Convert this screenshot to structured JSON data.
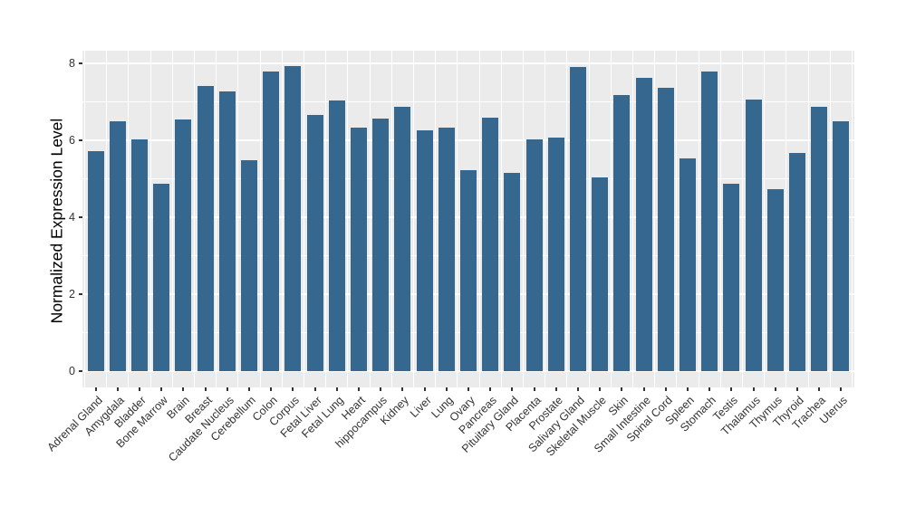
{
  "chart_data": {
    "type": "bar",
    "title": "",
    "xlabel": "",
    "ylabel": "Normalized Expression Level",
    "legend_position": "none",
    "grid": "on",
    "ylim": [
      -0.42,
      8.33
    ],
    "yticks": [
      0,
      2,
      4,
      6,
      8
    ],
    "minor_yticks": [
      1,
      3,
      5,
      7
    ],
    "categories": [
      "Adrenal Gland",
      "Amygdala",
      "Bladder",
      "Bone Marrow",
      "Brain",
      "Breast",
      "Caudate Nucleus",
      "Cerebellum",
      "Colon",
      "Corpus",
      "Fetal Liver",
      "Fetal Lung",
      "Heart",
      "hippocampus",
      "Kidney",
      "Liver",
      "Lung",
      "Ovary",
      "Pancreas",
      "Pituitary Gland",
      "Placenta",
      "Prostate",
      "Salivary Gland",
      "Skeletal Muscle",
      "Skin",
      "Small Intestine",
      "Spinal Cord",
      "Spleen",
      "Stomach",
      "Testis",
      "Thalamus",
      "Thymus",
      "Thyroid",
      "Trachea",
      "Uterus"
    ],
    "values": [
      5.72,
      6.5,
      6.02,
      4.88,
      6.55,
      7.42,
      7.28,
      5.48,
      7.8,
      7.92,
      6.65,
      7.04,
      6.34,
      6.57,
      6.87,
      6.27,
      6.34,
      5.22,
      6.6,
      5.16,
      6.02,
      6.06,
      7.9,
      5.04,
      7.18,
      7.62,
      7.36,
      5.54,
      7.8,
      4.88,
      7.06,
      4.73,
      5.66,
      6.87,
      6.5
    ],
    "colors": {
      "bar": "#36678F",
      "panel_background": "#EBEBEB",
      "gridline": "#FFFFFF",
      "axis_text": "#333333",
      "axis_title": "#000000",
      "figure_background": "#FFFFFF"
    }
  }
}
